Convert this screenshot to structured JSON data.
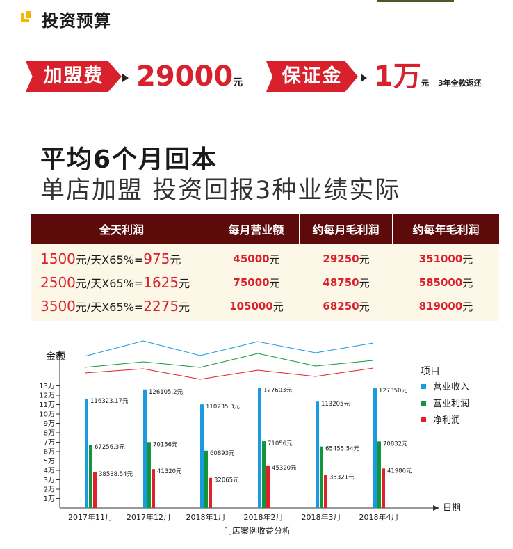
{
  "header": {
    "title": "投资预算"
  },
  "fees": {
    "franchise_label": "加盟费",
    "franchise_value": "29000",
    "franchise_unit": "元",
    "deposit_label": "保证金",
    "deposit_value": "1万",
    "deposit_unit": "元",
    "deposit_note": "3年全款返还"
  },
  "headline": {
    "line1": "平均6个月回本",
    "line2": "单店加盟 投资回报3种业绩实际"
  },
  "table": {
    "headers": [
      "全天利润",
      "每月营业额",
      "约每月毛利润",
      "约每年毛利润"
    ],
    "rows": [
      {
        "d1": "1500",
        "d2": "元/天X65%=",
        "d3": "975",
        "d4": "元",
        "rev": "45000",
        "mon": "29250",
        "year": "351000",
        "unit": "元"
      },
      {
        "d1": "2500",
        "d2": "元/天X65%=",
        "d3": "1625",
        "d4": "元",
        "rev": "75000",
        "mon": "48750",
        "year": "585000",
        "unit": "元"
      },
      {
        "d1": "3500",
        "d2": "元/天X65%=",
        "d3": "2275",
        "d4": "元",
        "rev": "105000",
        "mon": "68250",
        "year": "819000",
        "unit": "元"
      }
    ]
  },
  "chart_data": {
    "type": "bar",
    "title": "门店案例收益分析",
    "xlabel": "日期",
    "ylabel": "金额",
    "ylim": [
      0,
      130000
    ],
    "yticks": [
      "1万",
      "2万",
      "3万",
      "4万",
      "5万",
      "6万",
      "7万",
      "8万",
      "9万",
      "10万",
      "11万",
      "12万",
      "13万"
    ],
    "legend_title": "项目",
    "legend_position": "right",
    "categories": [
      "2017年11月",
      "2017年12月",
      "2018年1月",
      "2018年2月",
      "2018年3月",
      "2018年4月"
    ],
    "series": [
      {
        "name": "营业收入",
        "color": "#1a9be0",
        "values": [
          116323.17,
          126105.2,
          110235.3,
          127603,
          113205,
          127350
        ],
        "labels": [
          "116323.17元",
          "126105.2元",
          "110235.3元",
          "127603元",
          "113205元",
          "127350元"
        ]
      },
      {
        "name": "营业利润",
        "color": "#13963a",
        "values": [
          67256.3,
          70156,
          60893,
          71056,
          65455.54,
          70832
        ],
        "labels": [
          "67256.3元",
          "70156元",
          "60893元",
          "71056元",
          "65455.54元",
          "70832元"
        ]
      },
      {
        "name": "净利润",
        "color": "#e0202a",
        "values": [
          38538.54,
          41320,
          32065,
          45320,
          35321,
          41980
        ],
        "labels": [
          "38538.54元",
          "41320元",
          "32065元",
          "45320元",
          "35321元",
          "41980元"
        ]
      }
    ]
  }
}
